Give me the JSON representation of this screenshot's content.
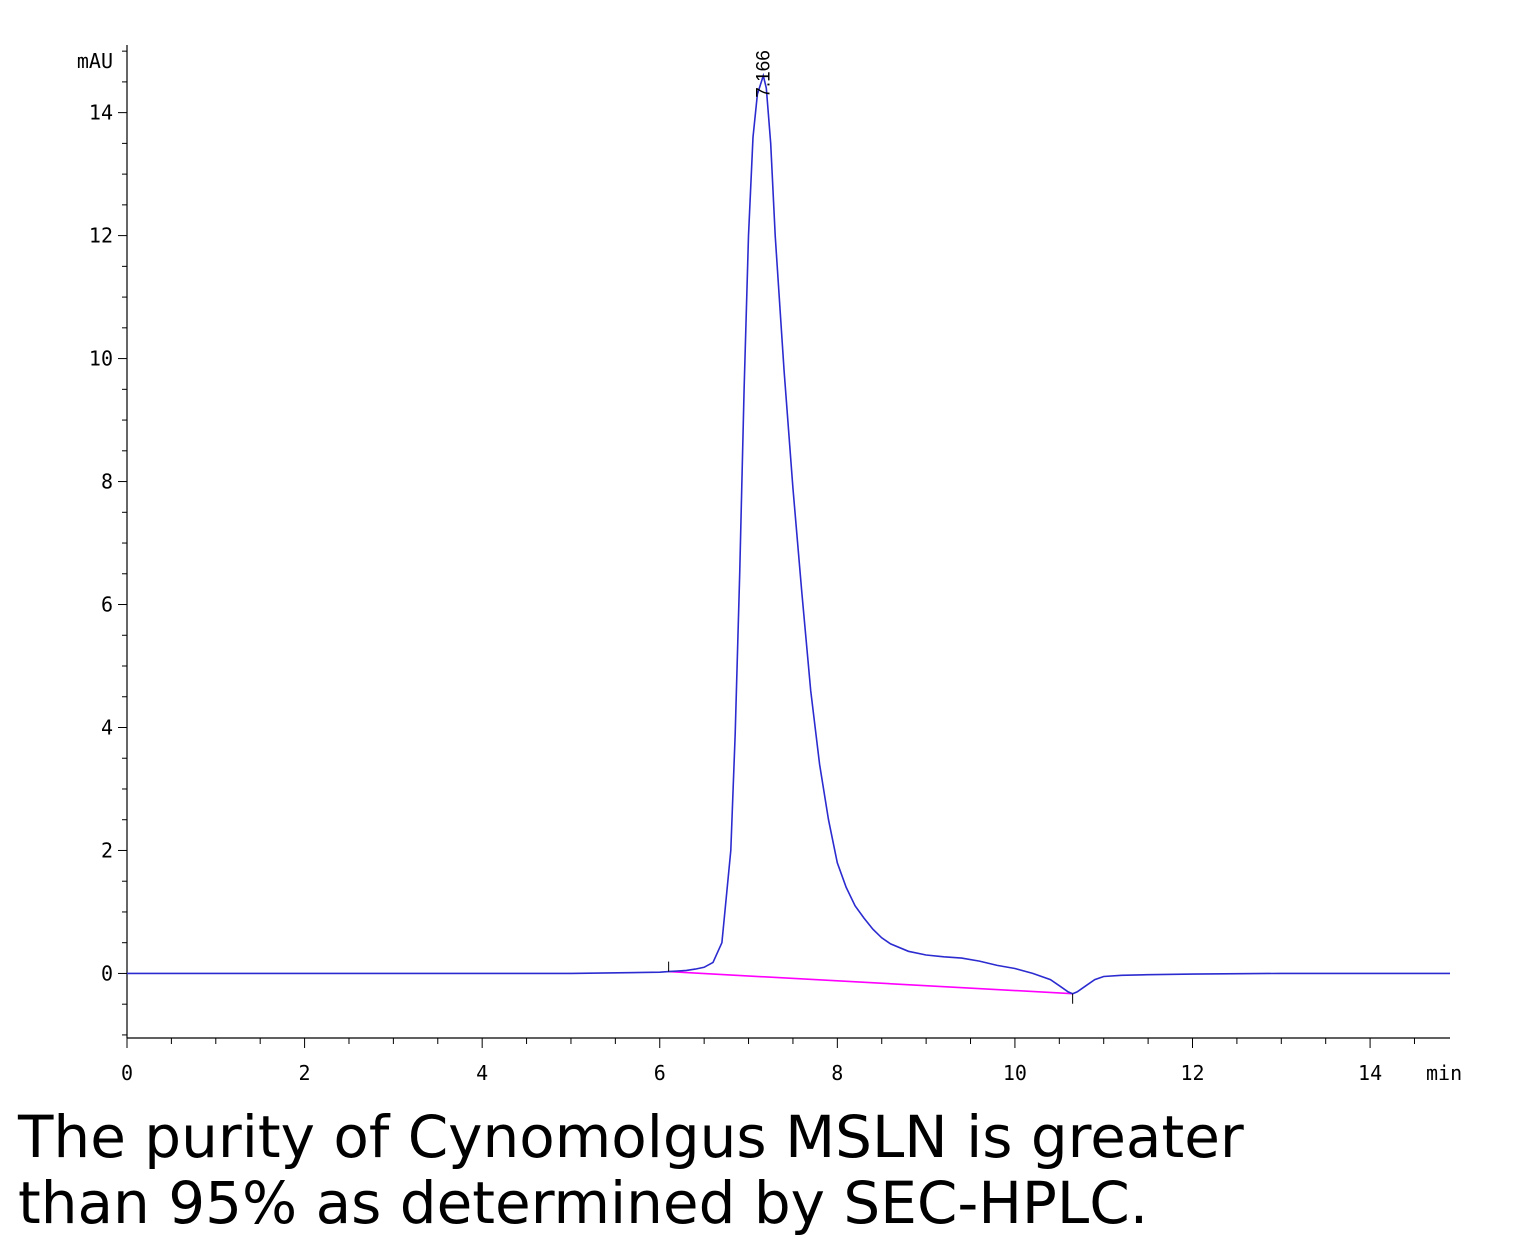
{
  "chart_data": {
    "type": "line",
    "title": "",
    "xlabel": "min",
    "ylabel": "mAU",
    "xlim": [
      0,
      14.9
    ],
    "ylim": [
      -1.05,
      15.1
    ],
    "x_ticks": [
      0,
      2,
      4,
      6,
      8,
      10,
      12,
      14
    ],
    "y_ticks": [
      0,
      2,
      4,
      6,
      8,
      10,
      12,
      14
    ],
    "grid": false,
    "peak_label": "7.166",
    "colors": {
      "signal": "#2b2bd0",
      "baseline": "#ff00ff",
      "axis": "#000000"
    },
    "series": [
      {
        "x": [
          0,
          1,
          2,
          3,
          4,
          5,
          6,
          6.1,
          6.2,
          6.3,
          6.4,
          6.5,
          6.6,
          6.7,
          6.8,
          6.85,
          6.9,
          6.95,
          7.0,
          7.05,
          7.1,
          7.166,
          7.2,
          7.25,
          7.3,
          7.4,
          7.5,
          7.6,
          7.7,
          7.8,
          7.9,
          8.0,
          8.1,
          8.2,
          8.3,
          8.4,
          8.5,
          8.6,
          8.8,
          9.0,
          9.2,
          9.4,
          9.6,
          9.8,
          10.0,
          10.2,
          10.4,
          10.5,
          10.6,
          10.65,
          10.7,
          10.8,
          10.9,
          11.0,
          11.2,
          11.5,
          12,
          13,
          14,
          14.9
        ],
        "y": [
          0,
          0,
          0,
          0,
          0,
          0,
          0.02,
          0.03,
          0.04,
          0.05,
          0.07,
          0.1,
          0.18,
          0.5,
          2.0,
          3.9,
          6.5,
          9.5,
          12.0,
          13.6,
          14.3,
          14.6,
          14.4,
          13.5,
          12.0,
          9.8,
          7.9,
          6.2,
          4.6,
          3.4,
          2.5,
          1.8,
          1.4,
          1.1,
          0.9,
          0.72,
          0.58,
          0.48,
          0.36,
          0.3,
          0.27,
          0.25,
          0.2,
          0.13,
          0.08,
          0.0,
          -0.1,
          -0.2,
          -0.3,
          -0.33,
          -0.3,
          -0.2,
          -0.1,
          -0.05,
          -0.03,
          -0.02,
          -0.01,
          0,
          0,
          0
        ]
      },
      {
        "x": [
          6.1,
          10.65
        ],
        "y": [
          0.03,
          -0.33
        ]
      }
    ]
  },
  "caption": {
    "line1": "The purity of Cynomolgus MSLN is greater",
    "line2": "than 95% as determined by SEC-HPLC."
  }
}
